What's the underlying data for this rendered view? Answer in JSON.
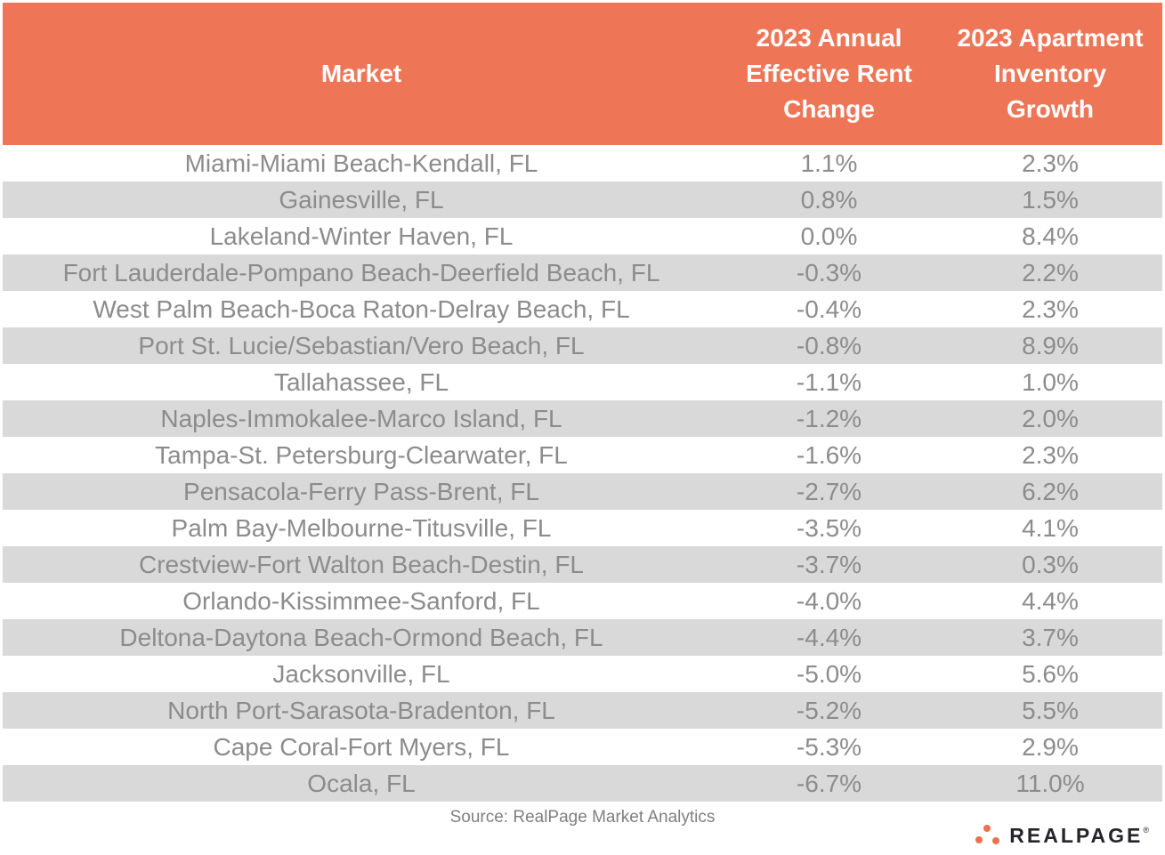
{
  "chart_data": {
    "type": "table",
    "columns": [
      "Market",
      "2023 Annual\nEffective Rent\nChange",
      "2023 Apartment\nInventory\nGrowth"
    ],
    "rows": [
      [
        "Miami-Miami Beach-Kendall, FL",
        "1.1%",
        "2.3%"
      ],
      [
        "Gainesville, FL",
        "0.8%",
        "1.5%"
      ],
      [
        "Lakeland-Winter Haven, FL",
        "0.0%",
        "8.4%"
      ],
      [
        "Fort Lauderdale-Pompano Beach-Deerfield Beach, FL",
        "-0.3%",
        "2.2%"
      ],
      [
        "West Palm Beach-Boca Raton-Delray Beach, FL",
        "-0.4%",
        "2.3%"
      ],
      [
        "Port St. Lucie/Sebastian/Vero Beach, FL",
        "-0.8%",
        "8.9%"
      ],
      [
        "Tallahassee, FL",
        "-1.1%",
        "1.0%"
      ],
      [
        "Naples-Immokalee-Marco Island, FL",
        "-1.2%",
        "2.0%"
      ],
      [
        "Tampa-St. Petersburg-Clearwater, FL",
        "-1.6%",
        "2.3%"
      ],
      [
        "Pensacola-Ferry Pass-Brent, FL",
        "-2.7%",
        "6.2%"
      ],
      [
        "Palm Bay-Melbourne-Titusville, FL",
        "-3.5%",
        "4.1%"
      ],
      [
        "Crestview-Fort Walton Beach-Destin, FL",
        "-3.7%",
        "0.3%"
      ],
      [
        "Orlando-Kissimmee-Sanford, FL",
        "-4.0%",
        "4.4%"
      ],
      [
        "Deltona-Daytona Beach-Ormond Beach, FL",
        "-4.4%",
        "3.7%"
      ],
      [
        "Jacksonville, FL",
        "-5.0%",
        "5.6%"
      ],
      [
        "North Port-Sarasota-Bradenton, FL",
        "-5.2%",
        "5.5%"
      ],
      [
        "Cape Coral-Fort Myers, FL",
        "-5.3%",
        "2.9%"
      ],
      [
        "Ocala, FL",
        "-6.7%",
        "11.0%"
      ]
    ],
    "layout": {
      "header_bg": "#EE7657",
      "header_text_color": "#FFFFFF",
      "alt_row_bg": "#D9D9D9",
      "row_text_color": "#8C8C8C",
      "grid": "none"
    }
  },
  "footer": {
    "source": "Source: RealPage Market Analytics"
  },
  "logo": {
    "text": "REALPAGE",
    "trademark": "®",
    "dot_color": "#E87350",
    "text_color": "#26232B"
  }
}
